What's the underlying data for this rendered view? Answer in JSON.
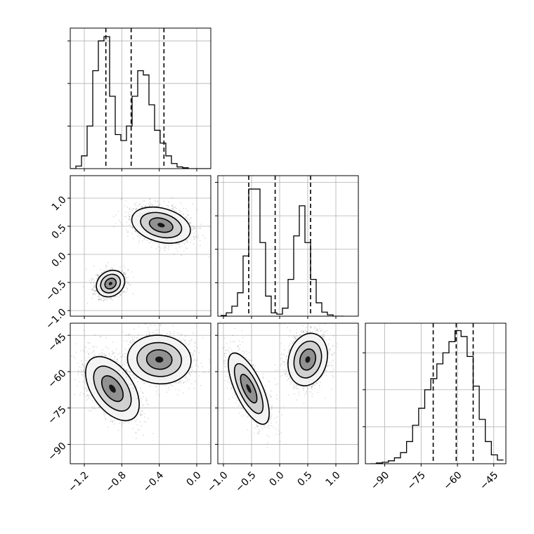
{
  "chart_data": {
    "type": "corner",
    "title": "",
    "grid": true,
    "parameters": [
      {
        "range": [
          -1.35,
          0.15
        ],
        "ticks": [
          -1.2,
          -0.8,
          -0.4,
          0.0
        ],
        "tick_labels": [
          "−1.2",
          "−0.8",
          "−0.4",
          "0.0"
        ],
        "quantiles": [
          -0.97,
          -0.7,
          -0.35
        ],
        "hist_edges": [
          -1.35,
          -1.29,
          -1.23,
          -1.17,
          -1.11,
          -1.05,
          -0.99,
          -0.93,
          -0.87,
          -0.81,
          -0.75,
          -0.69,
          -0.63,
          -0.57,
          -0.51,
          -0.45,
          -0.39,
          -0.33,
          -0.27,
          -0.21,
          -0.15,
          -0.09,
          -0.03,
          0.03,
          0.09,
          0.15
        ],
        "hist_counts": [
          0,
          0.03,
          0.15,
          0.5,
          1.15,
          1.5,
          1.55,
          0.85,
          0.4,
          0.33,
          0.5,
          0.85,
          1.15,
          1.1,
          0.75,
          0.45,
          0.3,
          0.15,
          0.06,
          0.02,
          0.01,
          0,
          0,
          0,
          0
        ],
        "hist_ymax": 1.65,
        "hist_yticks": [
          0.5,
          1.0,
          1.5
        ]
      },
      {
        "range": [
          -1.1,
          1.4
        ],
        "ticks": [
          -1.0,
          -0.5,
          0.0,
          0.5,
          1.0
        ],
        "tick_labels": [
          "−1.0",
          "−0.5",
          "0.0",
          "0.5",
          "1.0"
        ],
        "quantiles": [
          -0.55,
          -0.08,
          0.55
        ],
        "hist_edges": [
          -1.05,
          -0.95,
          -0.85,
          -0.75,
          -0.65,
          -0.55,
          -0.45,
          -0.35,
          -0.25,
          -0.15,
          -0.05,
          0.05,
          0.15,
          0.25,
          0.35,
          0.45,
          0.55,
          0.65,
          0.75,
          0.85,
          0.95,
          1.05,
          1.15
        ],
        "hist_counts": [
          0.01,
          0.05,
          0.15,
          0.35,
          0.9,
          1.9,
          1.9,
          1.1,
          0.3,
          0.05,
          0.03,
          0.12,
          0.55,
          1.2,
          1.65,
          1.1,
          0.55,
          0.2,
          0.06,
          0.02,
          0,
          0
        ],
        "hist_ymax": 2.1,
        "hist_yticks": [
          0.5,
          1.0,
          1.5,
          2.0
        ]
      },
      {
        "range": [
          -98,
          -40
        ],
        "ticks": [
          -90,
          -75,
          -60,
          -45
        ],
        "tick_labels": [
          "−90",
          "−75",
          "−60",
          "−45"
        ],
        "quantiles": [
          -70,
          -60.5,
          -53.5
        ],
        "hist_edges": [
          -96,
          -93.5,
          -91,
          -88.5,
          -86,
          -83.5,
          -81,
          -78.5,
          -76,
          -73.5,
          -71,
          -68.5,
          -66,
          -63.5,
          -61,
          -58.5,
          -56,
          -53.5,
          -51,
          -48.5,
          -46,
          -43.5,
          -41
        ],
        "hist_counts": [
          0,
          0.01,
          0.02,
          0.04,
          0.08,
          0.15,
          0.3,
          0.52,
          0.75,
          1.0,
          1.15,
          1.35,
          1.5,
          1.65,
          1.8,
          1.72,
          1.45,
          1.05,
          0.6,
          0.3,
          0.12,
          0.05
        ],
        "hist_ymax": 1.9,
        "hist_yticks": [
          0.5,
          1.0,
          1.5
        ]
      }
    ],
    "pairs": [
      {
        "x": 0,
        "y": 1,
        "clusters": [
          {
            "cx": -0.92,
            "cy": -0.52,
            "sx": 0.08,
            "sy": 0.11,
            "rot": -35,
            "n": 1400
          },
          {
            "cx": -0.38,
            "cy": 0.52,
            "sx": 0.16,
            "sy": 0.15,
            "rot": 15,
            "n": 1800
          }
        ]
      },
      {
        "x": 0,
        "y": 2,
        "clusters": [
          {
            "cx": -0.9,
            "cy": -67,
            "sx": 0.11,
            "sy": 7.5,
            "rot": -35,
            "n": 1400
          },
          {
            "cx": -0.4,
            "cy": -55,
            "sx": 0.17,
            "sy": 5.0,
            "rot": 5,
            "n": 1800
          }
        ]
      },
      {
        "x": 1,
        "y": 2,
        "clusters": [
          {
            "cx": -0.55,
            "cy": -67,
            "sx": 0.12,
            "sy": 8.0,
            "rot": -25,
            "n": 1400
          },
          {
            "cx": 0.5,
            "cy": -55,
            "sx": 0.17,
            "sy": 5.5,
            "rot": 15,
            "n": 1800
          }
        ]
      }
    ]
  }
}
